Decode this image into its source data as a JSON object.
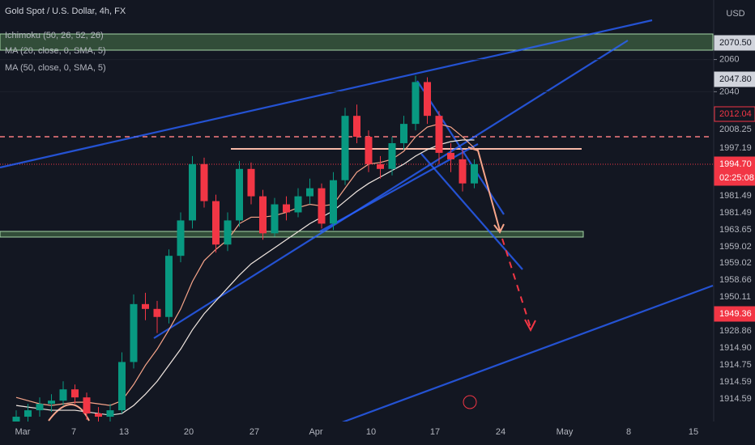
{
  "chart_data": {
    "type": "candlestick",
    "title": "Gold Spot / U.S. Dollar, 4h, FX",
    "indicators": [
      "Ichimoku (50, 26, 52, 26)",
      "MA (20, close, 0, SMA, 5)",
      "MA (50, close, 0, SMA, 5)"
    ],
    "currency": "USD",
    "up_color": "#089981",
    "down_color": "#f23645",
    "ylim": [
      1835,
      2097
    ],
    "yticks": [
      2060,
      2040
    ],
    "price_labels": [
      {
        "text": "2070.50",
        "style": "dark"
      },
      {
        "text": "2047.80",
        "style": "dark"
      },
      {
        "text": "2012.04",
        "style": "outline"
      },
      {
        "text": "2008.25",
        "style": "plain"
      },
      {
        "text": "1997.19",
        "style": "plain"
      },
      {
        "text": "1994.70",
        "style": "red"
      },
      {
        "text": "02:25:08",
        "style": "red"
      },
      {
        "text": "1981.49",
        "style": "plain"
      },
      {
        "text": "1981.49",
        "style": "plain"
      },
      {
        "text": "1963.65",
        "style": "plain"
      },
      {
        "text": "1959.02",
        "style": "plain"
      },
      {
        "text": "1959.02",
        "style": "plain"
      },
      {
        "text": "1958.66",
        "style": "plain"
      },
      {
        "text": "1950.11",
        "style": "plain"
      },
      {
        "text": "1949.36",
        "style": "red"
      },
      {
        "text": "1928.86",
        "style": "plain"
      },
      {
        "text": "1914.90",
        "style": "plain"
      },
      {
        "text": "1914.75",
        "style": "plain"
      },
      {
        "text": "1914.59",
        "style": "plain"
      },
      {
        "text": "1914.59",
        "style": "plain"
      }
    ],
    "x_labels": [
      "Mar",
      "7",
      "13",
      "20",
      "27",
      "Apr",
      "10",
      "17",
      "24",
      "May",
      "8",
      "15"
    ],
    "open": [
      1832,
      1838,
      1842,
      1846,
      1848,
      1855,
      1850,
      1840,
      1838,
      1842,
      1872,
      1908,
      1905,
      1900,
      1938,
      1960,
      1995,
      1972,
      1945,
      1960,
      1992,
      1975,
      1952,
      1970,
      1965,
      1975,
      1980,
      1958,
      1985,
      2025,
      2012,
      1995,
      1992,
      2008,
      2020,
      2046,
      2025,
      2002,
      1998,
      1983
    ],
    "high": [
      1842,
      1846,
      1850,
      1852,
      1860,
      1858,
      1853,
      1844,
      1846,
      1878,
      1914,
      1915,
      1910,
      1942,
      1965,
      2000,
      1999,
      1976,
      1965,
      1997,
      1996,
      1979,
      1974,
      1975,
      1980,
      1986,
      1983,
      1990,
      2030,
      2032,
      2016,
      2000,
      2012,
      2025,
      2050,
      2049,
      2028,
      2008,
      2004,
      1998
    ],
    "low": [
      1828,
      1834,
      1838,
      1841,
      1845,
      1846,
      1836,
      1832,
      1834,
      1840,
      1868,
      1898,
      1890,
      1896,
      1934,
      1955,
      1968,
      1940,
      1941,
      1956,
      1970,
      1948,
      1950,
      1960,
      1962,
      1970,
      1955,
      1954,
      1982,
      2008,
      1990,
      1986,
      1988,
      2004,
      2016,
      2020,
      1995,
      1990,
      1978,
      1980
    ],
    "close": [
      1838,
      1842,
      1846,
      1848,
      1855,
      1850,
      1840,
      1838,
      1842,
      1872,
      1908,
      1905,
      1900,
      1938,
      1960,
      1995,
      1972,
      1945,
      1960,
      1992,
      1975,
      1952,
      1970,
      1965,
      1975,
      1980,
      1958,
      1985,
      2025,
      2012,
      1995,
      1992,
      2008,
      2020,
      2046,
      2025,
      2002,
      1998,
      1983,
      1995
    ],
    "series": [
      {
        "name": "MA (20, close, 0, SMA, 5)",
        "color": "#f7a58a",
        "values": [
          1850,
          1848,
          1846,
          1845,
          1846,
          1847,
          1847,
          1846,
          1845,
          1848,
          1858,
          1870,
          1880,
          1892,
          1905,
          1922,
          1935,
          1942,
          1948,
          1958,
          1962,
          1962,
          1963,
          1965,
          1968,
          1970,
          1969,
          1970,
          1980,
          1990,
          1995,
          1996,
          1998,
          2003,
          2012,
          2018,
          2020,
          2018,
          2012,
          2005
        ]
      },
      {
        "name": "MA (50, close, 0, SMA, 5)",
        "color": "#f0e6e0",
        "values": [
          1845,
          1844,
          1843,
          1842,
          1842,
          1842,
          1841,
          1840,
          1839,
          1840,
          1845,
          1852,
          1860,
          1870,
          1880,
          1892,
          1902,
          1910,
          1918,
          1926,
          1933,
          1938,
          1943,
          1948,
          1953,
          1958,
          1962,
          1966,
          1972,
          1978,
          1983,
          1987,
          1991,
          1995,
          2000,
          2004,
          2007,
          2009,
          2010,
          2010
        ]
      }
    ]
  }
}
